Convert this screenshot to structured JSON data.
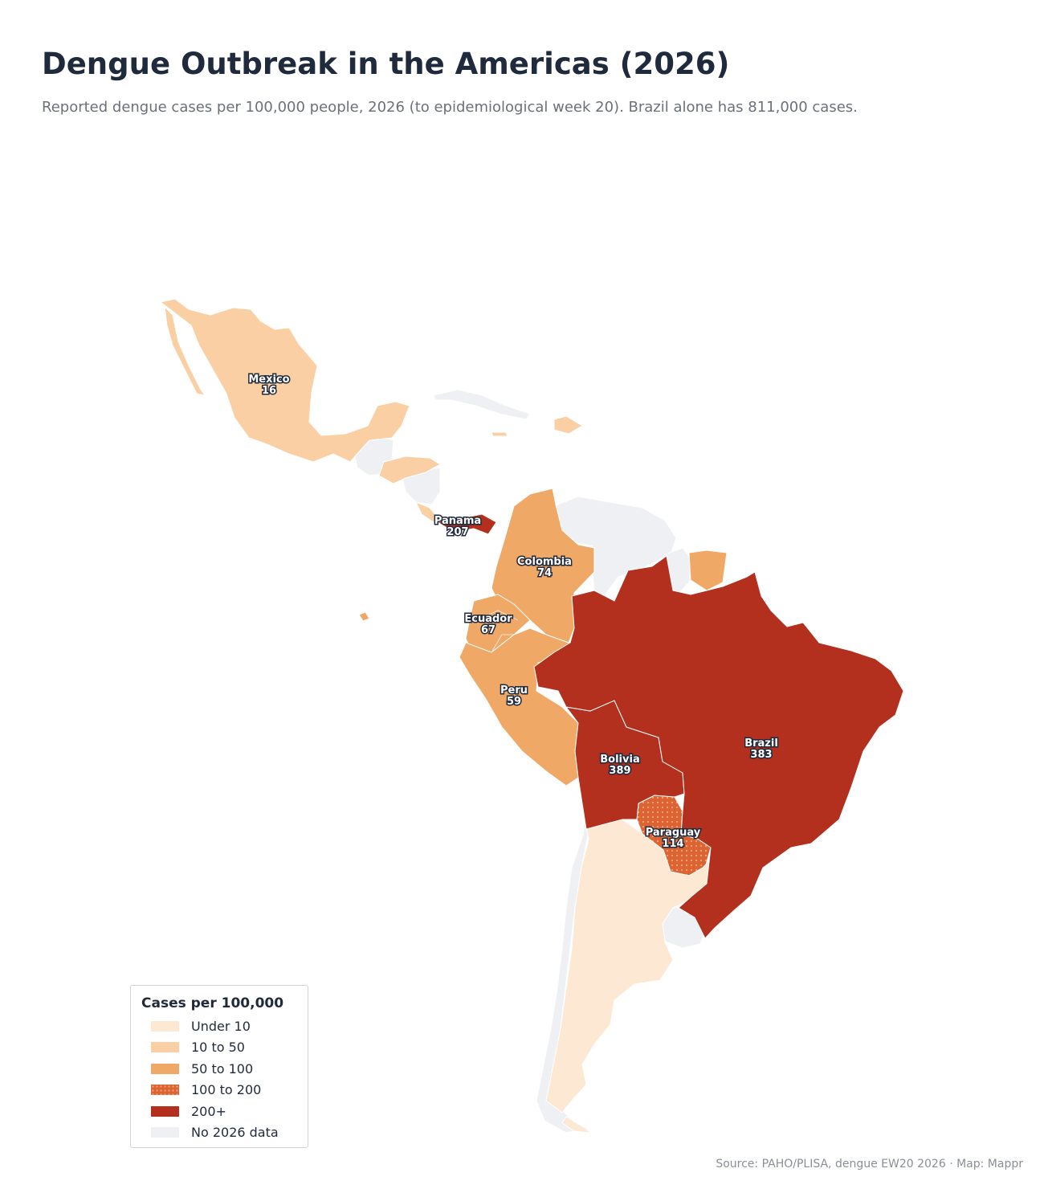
{
  "title": "Dengue Outbreak in the Americas (2026)",
  "subtitle": "Reported dengue cases per 100,000 people, 2026 (to epidemiological week 20). Brazil alone has 811,000 cases.",
  "source": "Source: PAHO/PLISA, dengue EW20 2026 · Map: Mappr",
  "legend": {
    "title": "Cases per 100,000",
    "items": [
      {
        "label": "Under 10",
        "color": "#fde8d4"
      },
      {
        "label": "10 to 50",
        "color": "#f9cfa3"
      },
      {
        "label": "50 to 100",
        "color": "#f0a866"
      },
      {
        "label": "100 to 200",
        "color": "#dc6433",
        "pattern": "dotted"
      },
      {
        "label": "200+",
        "color": "#b3301f"
      },
      {
        "label": "No 2026 data",
        "color": "#eef0f4"
      }
    ]
  },
  "countries": [
    {
      "name": "Mexico",
      "value": "16",
      "bin": "10 to 50"
    },
    {
      "name": "Panama",
      "value": "207",
      "bin": "200+"
    },
    {
      "name": "Colombia",
      "value": "74",
      "bin": "50 to 100"
    },
    {
      "name": "Ecuador",
      "value": "67",
      "bin": "50 to 100"
    },
    {
      "name": "Peru",
      "value": "59",
      "bin": "50 to 100"
    },
    {
      "name": "Bolivia",
      "value": "389",
      "bin": "200+"
    },
    {
      "name": "Brazil",
      "value": "383",
      "bin": "200+"
    },
    {
      "name": "Paraguay",
      "value": "114",
      "bin": "100 to 200"
    }
  ],
  "colors": {
    "border": "#ffffff",
    "label_halo": "#1f2a3c"
  }
}
